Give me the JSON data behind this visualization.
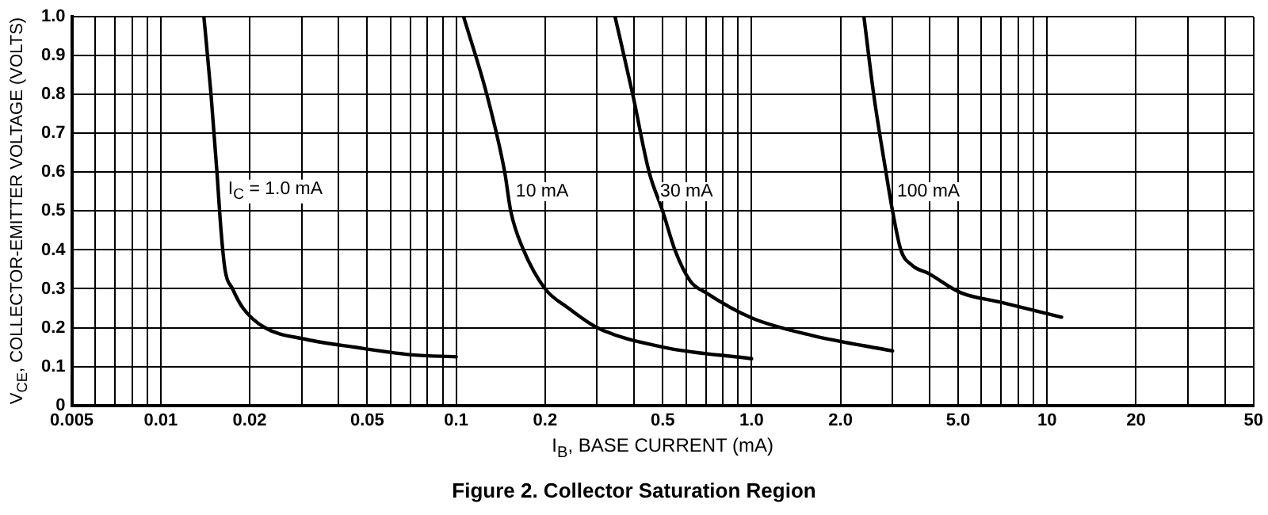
{
  "chart_data": {
    "type": "line",
    "title": "Figure 2. Collector Saturation Region",
    "xlabel": "I$_{B}$, BASE CURRENT (mA)",
    "ylabel": "V$_{CE}$, COLLECTOR-EMITTER VOLTAGE (VOLTS)",
    "log": "x",
    "grid": true,
    "legend": false,
    "marker": "none",
    "line_style": "solid",
    "xlim": [
      0.005,
      50
    ],
    "ylim": [
      0,
      1.0
    ],
    "xticks": [
      0.005,
      {
        "value": 0.006,
        "label": null
      },
      {
        "value": 0.007,
        "label": null
      },
      {
        "value": 0.008,
        "label": null
      },
      {
        "value": 0.009,
        "label": null
      },
      0.01,
      0.02,
      {
        "value": 0.03,
        "label": null
      },
      {
        "value": 0.04,
        "label": null
      },
      0.05,
      {
        "value": 0.06,
        "label": null
      },
      {
        "value": 0.07,
        "label": null
      },
      {
        "value": 0.08,
        "label": null
      },
      {
        "value": 0.09,
        "label": null
      },
      0.1,
      0.2,
      {
        "value": 0.3,
        "label": null
      },
      {
        "value": 0.4,
        "label": null
      },
      0.5,
      {
        "value": 0.6,
        "label": null
      },
      {
        "value": 0.7,
        "label": null
      },
      {
        "value": 0.8,
        "label": null
      },
      {
        "value": 0.9,
        "label": null
      },
      {
        "value": 1,
        "label": "1.0"
      },
      {
        "value": 2,
        "label": "2.0"
      },
      {
        "value": 3,
        "label": null
      },
      {
        "value": 4,
        "label": null
      },
      {
        "value": 5,
        "label": "5.0"
      },
      {
        "value": 6,
        "label": null
      },
      {
        "value": 7,
        "label": null
      },
      {
        "value": 8,
        "label": null
      },
      {
        "value": 9,
        "label": null
      },
      10,
      20,
      {
        "value": 30,
        "label": null
      },
      {
        "value": 40,
        "label": null
      },
      50
    ],
    "yticks": [
      0,
      0.1,
      0.2,
      0.3,
      0.4,
      0.5,
      0.6,
      0.7,
      0.8,
      0.9,
      {
        "value": 1.0,
        "label": "1.0"
      }
    ],
    "series": [
      {
        "name": "I$_{C}$ = 1.0 mA",
        "color": "#000000",
        "x": [
          0.014,
          0.0148,
          0.0155,
          0.016,
          0.0165,
          0.0175,
          0.019,
          0.0225,
          0.031,
          0.045,
          0.071,
          0.1
        ],
        "values": [
          1.0,
          0.8,
          0.6,
          0.45,
          0.35,
          0.3,
          0.25,
          0.2,
          0.17,
          0.15,
          0.13,
          0.125
        ]
      },
      {
        "name": "10 mA",
        "color": "#000000",
        "x": [
          0.106,
          0.127,
          0.146,
          0.153,
          0.169,
          0.2,
          0.24,
          0.3,
          0.5,
          1.0
        ],
        "values": [
          1.0,
          0.8,
          0.6,
          0.5,
          0.4,
          0.3,
          0.25,
          0.2,
          0.15,
          0.12
        ]
      },
      {
        "name": "30 mA",
        "color": "#000000",
        "x": [
          0.345,
          0.396,
          0.45,
          0.5,
          0.55,
          0.62,
          0.7,
          1.0,
          1.6,
          3.0
        ],
        "values": [
          1.0,
          0.8,
          0.6,
          0.5,
          0.4,
          0.32,
          0.29,
          0.225,
          0.18,
          0.14
        ]
      },
      {
        "name": "100 mA",
        "color": "#000000",
        "x": [
          2.4,
          2.59,
          2.85,
          3.0,
          3.2,
          3.5,
          3.96,
          5.1,
          7.0,
          11.2
        ],
        "values": [
          1.0,
          0.8,
          0.6,
          0.5,
          0.4,
          0.36,
          0.34,
          0.29,
          0.265,
          0.227
        ]
      }
    ]
  }
}
